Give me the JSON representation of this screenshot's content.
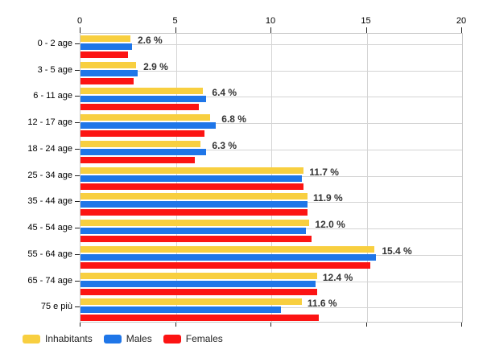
{
  "chart_data": {
    "type": "bar",
    "orientation": "horizontal",
    "title": "",
    "xlabel": "",
    "ylabel": "",
    "xlim": [
      0,
      20
    ],
    "x_ticks": [
      "0",
      "5",
      "10",
      "15",
      "20"
    ],
    "grid": "on",
    "legend_position": "bottom-left",
    "categories": [
      "0 - 2 age",
      "3 - 5 age",
      "6 - 11 age",
      "12 - 17 age",
      "18 - 24 age",
      "25 - 34 age",
      "35 - 44 age",
      "45 - 54 age",
      "55 - 64 age",
      "65 - 74 age",
      "75 e più"
    ],
    "value_labels": [
      "2.6 %",
      "2.9 %",
      "6.4 %",
      "6.8 %",
      "6.3 %",
      "11.7 %",
      "11.9 %",
      "12.0 %",
      "15.4 %",
      "12.4 %",
      "11.6 %"
    ],
    "series": [
      {
        "name": "Inhabitants",
        "color": "#f8cf40",
        "values": [
          2.6,
          2.9,
          6.4,
          6.8,
          6.3,
          11.7,
          11.9,
          12.0,
          15.4,
          12.4,
          11.6
        ]
      },
      {
        "name": "Males",
        "color": "#1f76e8",
        "values": [
          2.7,
          3.0,
          6.6,
          7.1,
          6.6,
          11.6,
          11.9,
          11.8,
          15.5,
          12.3,
          10.5
        ]
      },
      {
        "name": "Females",
        "color": "#fc1413",
        "values": [
          2.5,
          2.8,
          6.2,
          6.5,
          6.0,
          11.7,
          11.9,
          12.1,
          15.2,
          12.4,
          12.5
        ]
      }
    ]
  },
  "colors": {
    "grid": "#d4d4d4",
    "plot_border": "#c9c9c9",
    "axis_tick": "#222222",
    "value_label": "#333333",
    "background": "#ffffff"
  }
}
